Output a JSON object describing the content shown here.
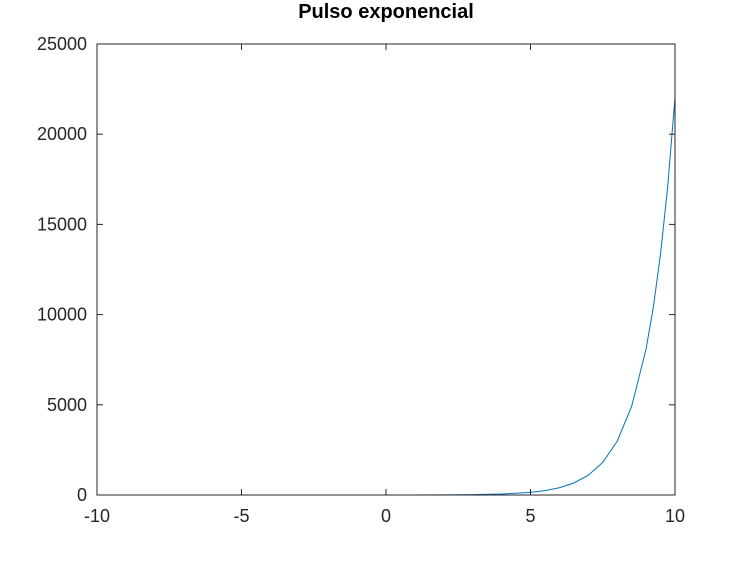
{
  "chart_data": {
    "type": "line",
    "title": "Pulso exponencial",
    "xlabel": "",
    "ylabel": "",
    "xlim": [
      -10,
      10
    ],
    "ylim": [
      0,
      25000
    ],
    "xticks": [
      -10,
      -5,
      0,
      5,
      10
    ],
    "yticks": [
      0,
      5000,
      10000,
      15000,
      20000,
      25000
    ],
    "xtick_labels": [
      "-10",
      "-5",
      "0",
      "5",
      "10"
    ],
    "ytick_labels": [
      "0",
      "5000",
      "10000",
      "15000",
      "20000",
      "25000"
    ],
    "grid": false,
    "series": [
      {
        "color": "#0072bd",
        "x": [
          -10,
          -8,
          -6,
          -4,
          -2,
          0,
          1,
          2,
          3,
          4,
          5,
          5.5,
          6,
          6.5,
          7,
          7.5,
          8,
          8.5,
          9,
          9.25,
          9.5,
          9.75,
          10
        ],
        "y": [
          0,
          0,
          0,
          0,
          0,
          1,
          3,
          7,
          20,
          55,
          148,
          245,
          403,
          665,
          1097,
          1808,
          2981,
          4915,
          8103,
          10405,
          13360,
          17154,
          22026
        ]
      }
    ]
  }
}
